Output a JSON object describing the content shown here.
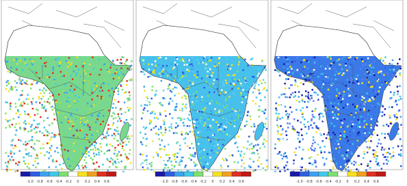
{
  "panels": [
    {
      "colorbar_labels": [
        "-1.0",
        "-0.8",
        "-0.6",
        "-0.4",
        "-0.2",
        "0",
        "0.2",
        "0.4",
        "0.6"
      ]
    },
    {
      "colorbar_labels": [
        "-1.0",
        "-0.8",
        "-0.6",
        "-0.4",
        "-0.2",
        "0",
        "0.2",
        "0.4",
        "0.6"
      ]
    },
    {
      "colorbar_labels": [
        "-1.0",
        "-0.8",
        "-0.6",
        "-0.4",
        "-0.2",
        "0",
        "0.2",
        "0.4",
        "0.6"
      ]
    }
  ],
  "colorbar_colors": [
    "#1a1aa8",
    "#2f5fe0",
    "#3fa0f0",
    "#40c8e8",
    "#7fe070",
    "#ffffff",
    "#f6e020",
    "#f0a020",
    "#e03020",
    "#c01818"
  ]
}
